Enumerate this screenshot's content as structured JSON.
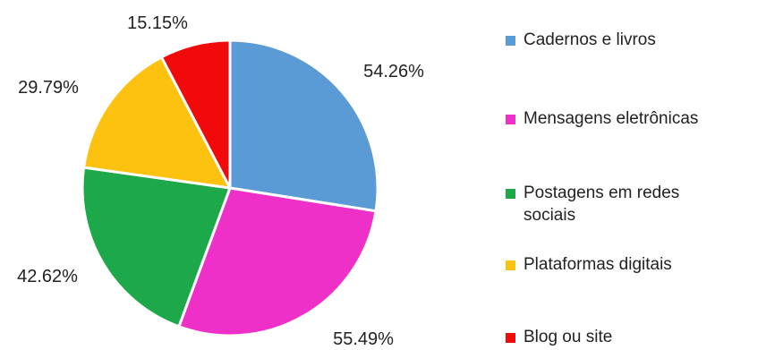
{
  "chart_data": {
    "type": "pie",
    "categories": [
      "Cadernos e livros",
      "Mensagens eletrônicas",
      "Postagens em redes sociais",
      "Plataformas digitais",
      "Blog ou site"
    ],
    "values": [
      54.26,
      55.49,
      42.62,
      29.79,
      15.15
    ],
    "labels": [
      "54.26%",
      "55.49%",
      "42.62%",
      "29.79%",
      "15.15%"
    ],
    "colors": [
      "#5B9BD5",
      "#EE2FC8",
      "#1DA84A",
      "#FDC20F",
      "#F00A0A"
    ],
    "legend_position": "right",
    "start_angle_deg": 0,
    "direction": "clockwise"
  },
  "legend": {
    "items": [
      {
        "label": "Cadernos e livros",
        "color": "#5B9BD5"
      },
      {
        "label": "Mensagens eletrônicas",
        "color": "#EE2FC8"
      },
      {
        "label": "Postagens em redes sociais",
        "color": "#1DA84A"
      },
      {
        "label": "Plataformas digitais",
        "color": "#FDC20F"
      },
      {
        "label": "Blog ou site",
        "color": "#F00A0A"
      }
    ]
  }
}
